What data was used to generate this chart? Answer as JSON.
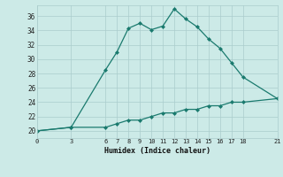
{
  "xlabel": "Humidex (Indice chaleur)",
  "bg_color": "#cceae7",
  "grid_color": "#aacccc",
  "line_color": "#1a7a6e",
  "xlim": [
    0,
    21
  ],
  "ylim": [
    19,
    37.5
  ],
  "yticks": [
    20,
    22,
    24,
    26,
    28,
    30,
    32,
    34,
    36
  ],
  "xticks": [
    0,
    3,
    6,
    7,
    8,
    9,
    10,
    11,
    12,
    13,
    14,
    15,
    16,
    17,
    18,
    21
  ],
  "curve1_x": [
    0,
    3,
    6,
    7,
    8,
    9,
    10,
    11,
    12,
    13,
    14,
    15,
    16,
    17,
    18,
    21
  ],
  "curve1_y": [
    20,
    20.5,
    28.5,
    31,
    34.3,
    35.0,
    34.1,
    34.6,
    37.0,
    35.6,
    34.5,
    32.8,
    31.5,
    29.5,
    27.5,
    24.5
  ],
  "curve2_x": [
    0,
    3,
    6,
    7,
    8,
    9,
    10,
    11,
    12,
    13,
    14,
    15,
    16,
    17,
    18,
    21
  ],
  "curve2_y": [
    20,
    20.5,
    20.5,
    21.0,
    21.5,
    21.5,
    22.0,
    22.5,
    22.5,
    23.0,
    23.0,
    23.5,
    23.5,
    24.0,
    24.0,
    24.5
  ]
}
